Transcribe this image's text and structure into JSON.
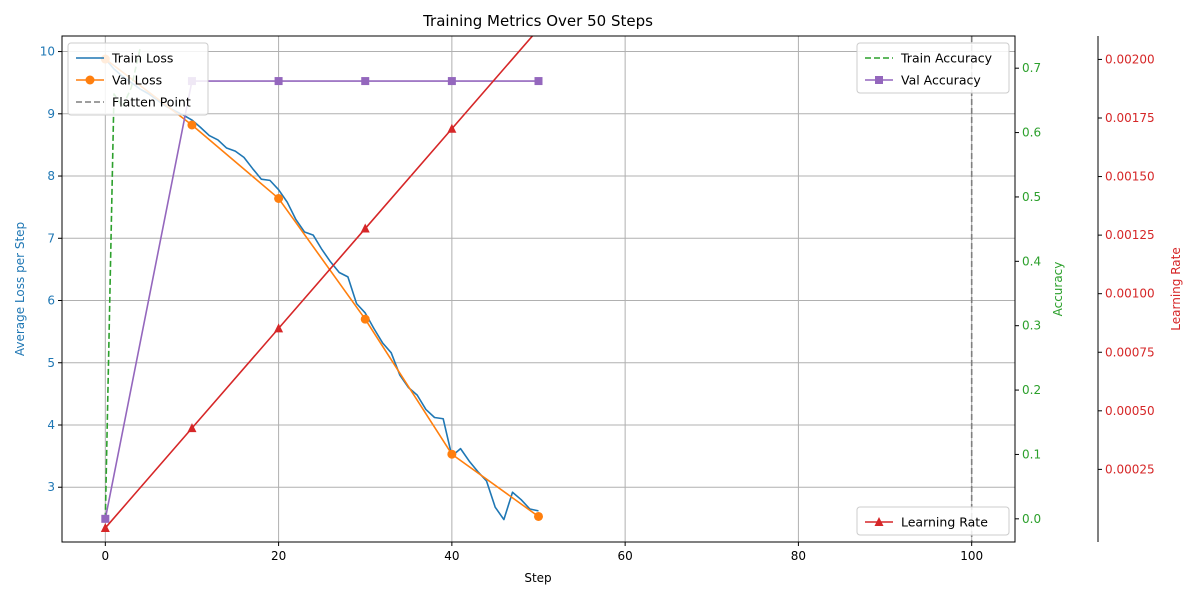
{
  "chart_data": {
    "type": "line",
    "title": "Training Metrics Over 50 Steps",
    "xlabel": "Step",
    "xlim": [
      -5,
      105
    ],
    "x_ticks": [
      0,
      20,
      40,
      60,
      80,
      100
    ],
    "grid": true,
    "axes": {
      "loss": {
        "label": "Average Loss per Step",
        "color": "#1f77b4",
        "ylim": [
          2.12,
          10.25
        ],
        "ticks": [
          3,
          4,
          5,
          6,
          7,
          8,
          9,
          10
        ]
      },
      "accuracy": {
        "label": "Accuracy",
        "color": "#2ca02c",
        "ylim": [
          -0.036,
          0.75
        ],
        "ticks": [
          "0.0",
          "0.1",
          "0.2",
          "0.3",
          "0.4",
          "0.5",
          "0.6",
          "0.7"
        ]
      },
      "lr": {
        "label": "Learning Rate",
        "color": "#d62728",
        "ylim": [
          -6e-05,
          0.0021
        ],
        "ticks": [
          "0.00025",
          "0.00050",
          "0.00075",
          "0.00100",
          "0.00125",
          "0.00150",
          "0.00175",
          "0.00200"
        ]
      }
    },
    "series": [
      {
        "name": "Train Loss",
        "axis": "loss",
        "color": "#1f77b4",
        "style": "solid",
        "marker": "none",
        "x": [
          0,
          1,
          2,
          3,
          4,
          5,
          6,
          7,
          8,
          9,
          10,
          11,
          12,
          13,
          14,
          15,
          16,
          17,
          18,
          19,
          20,
          21,
          22,
          23,
          24,
          25,
          26,
          27,
          28,
          29,
          30,
          31,
          32,
          33,
          34,
          35,
          36,
          37,
          38,
          39,
          40,
          41,
          42,
          43,
          44,
          45,
          46,
          47,
          48,
          49,
          50
        ],
        "y": [
          9.88,
          9.72,
          9.6,
          9.5,
          9.4,
          9.32,
          9.22,
          9.12,
          9.05,
          8.98,
          8.9,
          8.78,
          8.65,
          8.58,
          8.45,
          8.4,
          8.3,
          8.12,
          7.95,
          7.93,
          7.78,
          7.58,
          7.3,
          7.1,
          7.05,
          6.82,
          6.62,
          6.45,
          6.38,
          5.95,
          5.8,
          5.55,
          5.32,
          5.16,
          4.8,
          4.6,
          4.48,
          4.25,
          4.12,
          4.1,
          3.5,
          3.62,
          3.42,
          3.25,
          3.1,
          2.68,
          2.48,
          2.92,
          2.8,
          2.65,
          2.62
        ]
      },
      {
        "name": "Val Loss",
        "axis": "loss",
        "color": "#ff7f0e",
        "style": "solid",
        "marker": "circle",
        "x": [
          0,
          10,
          20,
          30,
          40,
          50
        ],
        "y": [
          9.88,
          8.82,
          7.64,
          5.7,
          3.53,
          2.53
        ]
      },
      {
        "name": "Flatten Point",
        "axis": "loss",
        "color": "#7f7f7f",
        "style": "dashed",
        "marker": "none",
        "type": "vline",
        "x": [
          100
        ]
      },
      {
        "name": "Train Accuracy",
        "axis": "accuracy",
        "color": "#2ca02c",
        "style": "dashed",
        "marker": "none",
        "x": [
          0,
          1,
          2,
          3,
          4
        ],
        "y": [
          0.0,
          0.66,
          0.64,
          0.67,
          0.73
        ]
      },
      {
        "name": "Val Accuracy",
        "axis": "accuracy",
        "color": "#9467bd",
        "style": "solid",
        "marker": "square",
        "x": [
          0,
          10,
          20,
          30,
          40,
          50
        ],
        "y": [
          0.0,
          0.68,
          0.68,
          0.68,
          0.68,
          0.68
        ]
      },
      {
        "name": "Learning Rate",
        "axis": "lr",
        "color": "#d62728",
        "style": "solid",
        "marker": "triangle",
        "x": [
          0,
          10,
          20,
          30,
          40,
          50
        ],
        "y": [
          0.0,
          0.000426,
          0.000852,
          0.001278,
          0.001704,
          0.00213
        ]
      }
    ],
    "legends": [
      {
        "position": "top-left",
        "entries": [
          "Train Loss",
          "Val Loss",
          "Flatten Point"
        ]
      },
      {
        "position": "top-right",
        "entries": [
          "Train Accuracy",
          "Val Accuracy"
        ]
      },
      {
        "position": "bottom-right",
        "entries": [
          "Learning Rate"
        ]
      }
    ]
  }
}
